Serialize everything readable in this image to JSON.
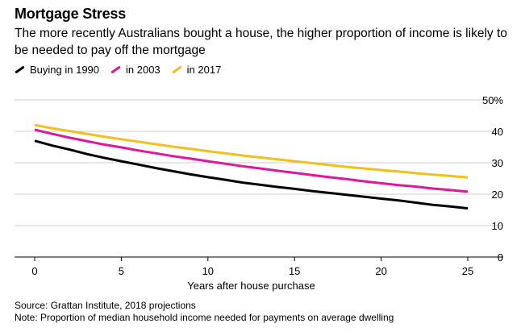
{
  "header": {
    "title": "Mortgage Stress",
    "subtitle": "The more recently Australians bought a house, the higher proportion of income is likely to be needed to pay off the mortgage"
  },
  "legend": [
    {
      "label": "Buying in 1990",
      "color": "#000000"
    },
    {
      "label": "in 2003",
      "color": "#e0169b"
    },
    {
      "label": "in 2017",
      "color": "#f2c01e"
    }
  ],
  "footer": {
    "source": "Source: Grattan Institute, 2018 projections",
    "note": "Note: Proportion of median household income needed for payments on average dwelling"
  },
  "chart_data": {
    "type": "line",
    "title": "Mortgage Stress",
    "xlabel": "Years after house purchase",
    "ylabel": "",
    "xlim": [
      0,
      25
    ],
    "ylim": [
      0,
      50
    ],
    "x_ticks": [
      0,
      5,
      10,
      15,
      20,
      25
    ],
    "y_ticks": [
      0,
      10,
      20,
      30,
      40,
      50
    ],
    "y_tick_labels": [
      "0",
      "10",
      "20",
      "30",
      "40",
      "50%"
    ],
    "grid": true,
    "series": [
      {
        "name": "Buying in 1990",
        "color": "#000000",
        "x": [
          0,
          1,
          2,
          3,
          4,
          5,
          6,
          7,
          8,
          9,
          10,
          11,
          12,
          13,
          14,
          15,
          16,
          17,
          18,
          19,
          20,
          21,
          22,
          23,
          24,
          25
        ],
        "values": [
          37.0,
          35.5,
          34.2,
          32.8,
          31.6,
          30.5,
          29.4,
          28.3,
          27.3,
          26.3,
          25.4,
          24.6,
          23.7,
          23.0,
          22.3,
          21.7,
          21.0,
          20.4,
          19.8,
          19.2,
          18.6,
          18.0,
          17.3,
          16.6,
          16.1,
          15.5
        ]
      },
      {
        "name": "in 2003",
        "color": "#e0169b",
        "x": [
          0,
          1,
          2,
          3,
          4,
          5,
          6,
          7,
          8,
          9,
          10,
          11,
          12,
          13,
          14,
          15,
          16,
          17,
          18,
          19,
          20,
          21,
          22,
          23,
          24,
          25
        ],
        "values": [
          40.5,
          39.2,
          38.0,
          36.9,
          35.8,
          34.9,
          33.9,
          33.0,
          32.1,
          31.3,
          30.5,
          29.7,
          28.9,
          28.2,
          27.5,
          26.8,
          26.1,
          25.4,
          24.8,
          24.1,
          23.5,
          22.9,
          22.4,
          21.8,
          21.3,
          20.8
        ]
      },
      {
        "name": "in 2017",
        "color": "#f2c01e",
        "x": [
          0,
          1,
          2,
          3,
          4,
          5,
          6,
          7,
          8,
          9,
          10,
          11,
          12,
          13,
          14,
          15,
          16,
          17,
          18,
          19,
          20,
          21,
          22,
          23,
          24,
          25
        ],
        "values": [
          42.0,
          41.0,
          40.1,
          39.2,
          38.3,
          37.5,
          36.7,
          35.9,
          35.1,
          34.4,
          33.7,
          33.0,
          32.3,
          31.7,
          31.1,
          30.5,
          29.9,
          29.3,
          28.7,
          28.2,
          27.7,
          27.2,
          26.7,
          26.2,
          25.8,
          25.3
        ]
      }
    ]
  }
}
